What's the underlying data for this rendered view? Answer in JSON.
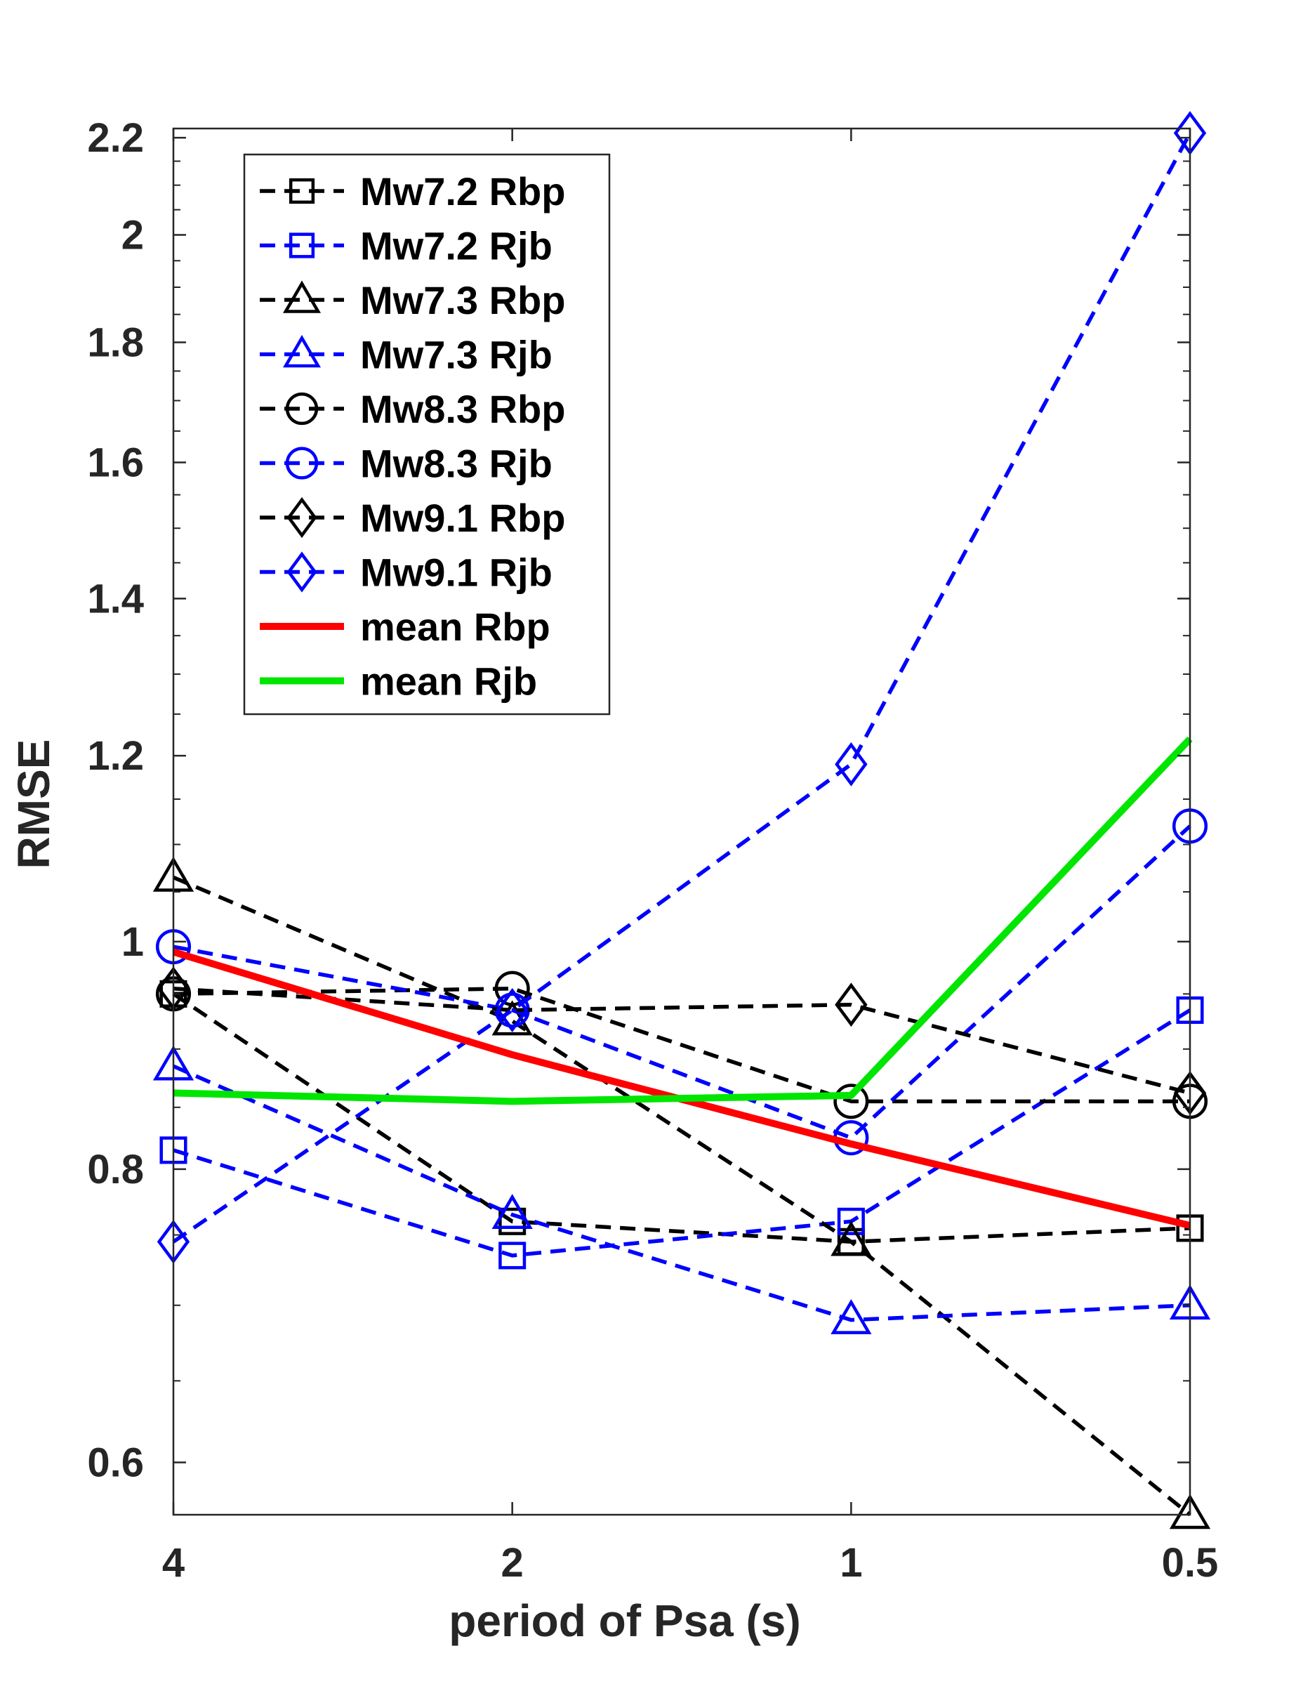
{
  "chart_data": {
    "type": "line",
    "xlabel": "period of Psa (s)",
    "ylabel": "RMSE",
    "x_scale": "log",
    "y_scale": "log",
    "x_reversed": true,
    "xlim": [
      0.5,
      4
    ],
    "ylim": [
      0.57,
      2.22
    ],
    "x_ticks": [
      4,
      2,
      1,
      0.5
    ],
    "x_tick_labels": [
      "4",
      "2",
      "1",
      "0.5"
    ],
    "y_ticks": [
      0.6,
      0.8,
      1,
      1.2,
      1.4,
      1.6,
      1.8,
      2,
      2.2
    ],
    "y_tick_labels": [
      "0.6",
      "0.8",
      "1",
      "1.2",
      "1.4",
      "1.6",
      "1.8",
      "2",
      "2.2"
    ],
    "grid": false,
    "legend_position": "top-left",
    "x": [
      4,
      2,
      1,
      0.5
    ],
    "series": [
      {
        "name": "Mw7.2 Rbp",
        "color": "#000000",
        "dash": "dashed",
        "marker": "square",
        "values": [
          0.95,
          0.76,
          0.745,
          0.755
        ]
      },
      {
        "name": "Mw7.2 Rjb",
        "color": "#0000ff",
        "dash": "dashed",
        "marker": "square",
        "values": [
          0.815,
          0.735,
          0.76,
          0.935
        ]
      },
      {
        "name": "Mw7.3 Rbp",
        "color": "#000000",
        "dash": "dashed",
        "marker": "triangle",
        "values": [
          1.065,
          0.925,
          0.745,
          0.57
        ]
      },
      {
        "name": "Mw7.3 Rjb",
        "color": "#0000ff",
        "dash": "dashed",
        "marker": "triangle",
        "values": [
          0.885,
          0.765,
          0.69,
          0.7
        ]
      },
      {
        "name": "Mw8.3 Rbp",
        "color": "#000000",
        "dash": "dashed",
        "marker": "circle",
        "values": [
          0.95,
          0.955,
          0.855,
          0.855
        ]
      },
      {
        "name": "Mw8.3 Rjb",
        "color": "#0000ff",
        "dash": "dashed",
        "marker": "circle",
        "values": [
          0.995,
          0.935,
          0.825,
          1.12
        ]
      },
      {
        "name": "Mw9.1 Rbp",
        "color": "#000000",
        "dash": "dashed",
        "marker": "diamond",
        "values": [
          0.955,
          0.935,
          0.94,
          0.862
        ]
      },
      {
        "name": "Mw9.1 Rjb",
        "color": "#0000ff",
        "dash": "dashed",
        "marker": "diamond",
        "values": [
          0.745,
          0.935,
          1.19,
          2.21
        ]
      },
      {
        "name": "mean Rbp",
        "color": "#ff0000",
        "dash": "solid",
        "marker": "none",
        "values": [
          0.99,
          0.895,
          0.82,
          0.757
        ]
      },
      {
        "name": "mean Rjb",
        "color": "#00e600",
        "dash": "solid",
        "marker": "none",
        "values": [
          0.862,
          0.855,
          0.86,
          1.22
        ]
      }
    ]
  }
}
